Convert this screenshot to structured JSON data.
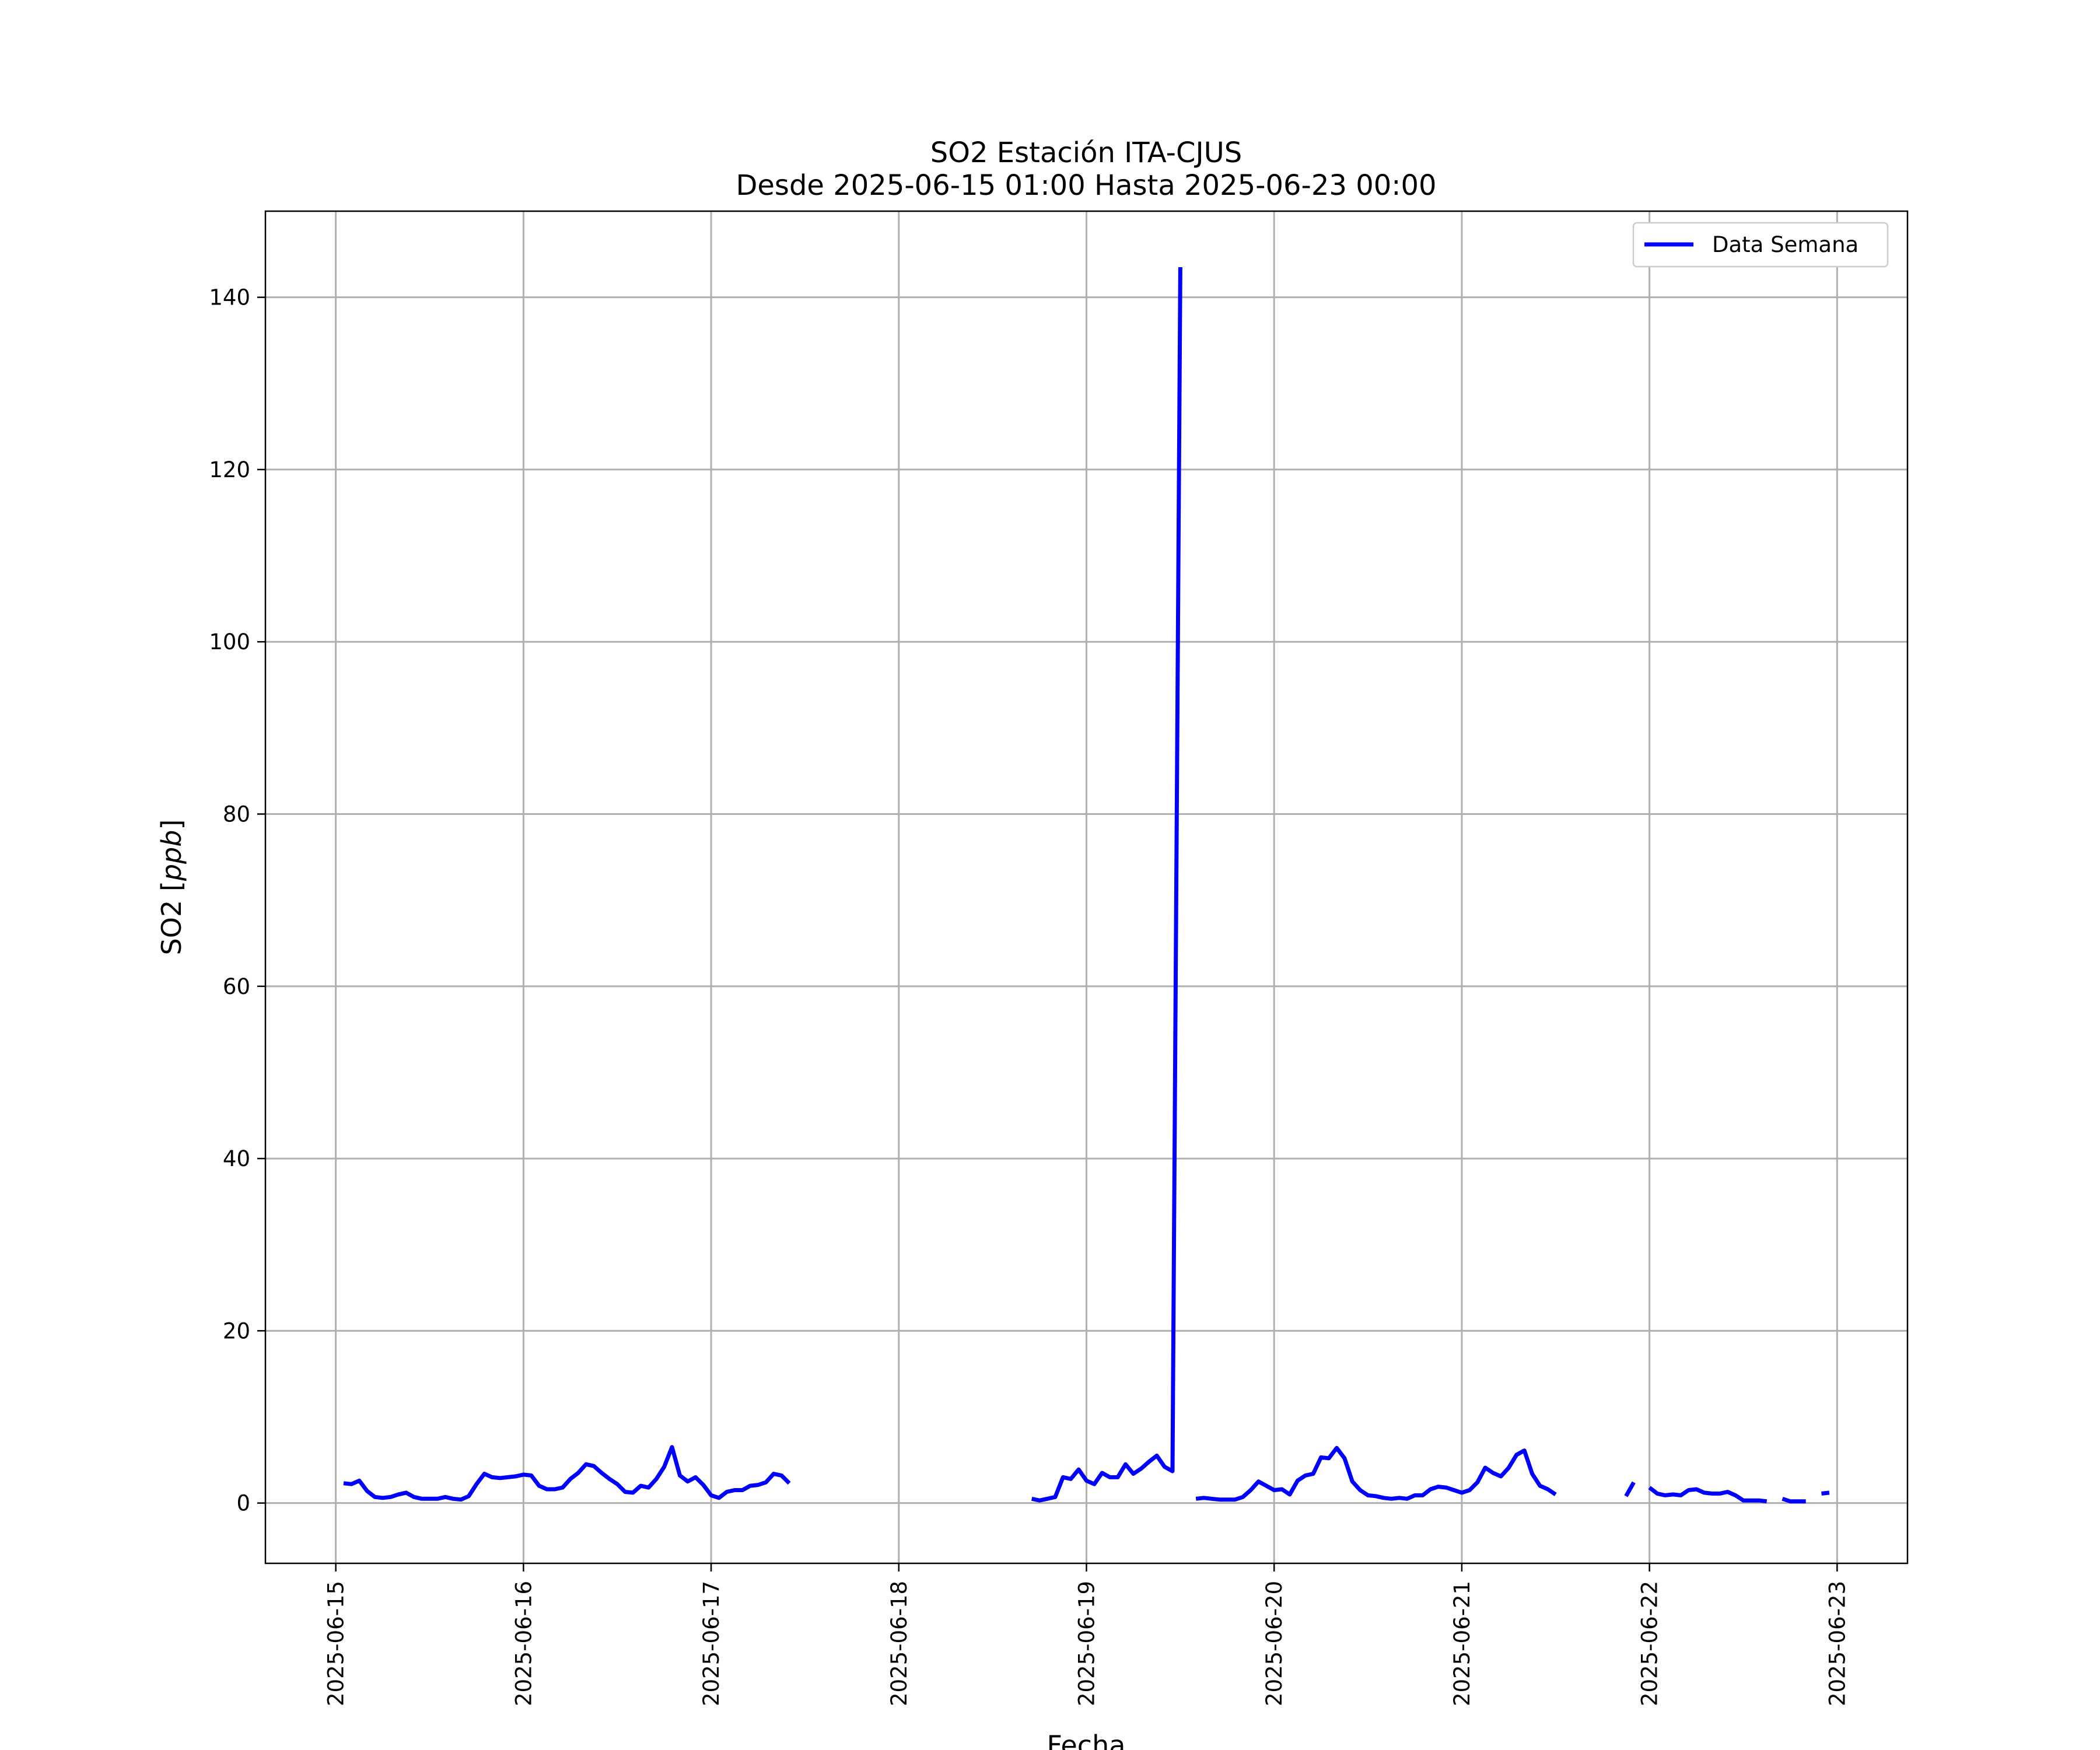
{
  "chart_data": {
    "type": "line",
    "title": "SO2 Estación ITA-CJUS",
    "subtitle": "Desde 2025-06-15 01:00 Hasta 2025-06-23 00:00",
    "xlabel": "Fecha",
    "ylabel": "SO2 [ppb]",
    "ylabel_plain": "SO2 [",
    "ylabel_italic": "ppb",
    "ylabel_close": "]",
    "xlim": [
      "2025-06-14 15:00",
      "2025-06-23 09:00"
    ],
    "ylim": [
      -7,
      150
    ],
    "x_ticks": [
      "2025-06-15",
      "2025-06-16",
      "2025-06-17",
      "2025-06-18",
      "2025-06-19",
      "2025-06-20",
      "2025-06-21",
      "2025-06-22",
      "2025-06-23"
    ],
    "y_ticks": [
      0,
      20,
      40,
      60,
      80,
      100,
      120,
      140
    ],
    "grid": true,
    "legend_position": "top-right",
    "line_color": "#0000ff",
    "series": [
      {
        "name": "Data Semana",
        "segments": [
          [
            [
              "2025-06-15 01:00",
              2.3
            ],
            [
              "2025-06-15 02:00",
              2.2
            ],
            [
              "2025-06-15 03:00",
              2.6
            ],
            [
              "2025-06-15 04:00",
              1.4
            ],
            [
              "2025-06-15 05:00",
              0.7
            ],
            [
              "2025-06-15 06:00",
              0.6
            ],
            [
              "2025-06-15 07:00",
              0.7
            ],
            [
              "2025-06-15 08:00",
              1.0
            ],
            [
              "2025-06-15 09:00",
              1.2
            ],
            [
              "2025-06-15 10:00",
              0.7
            ],
            [
              "2025-06-15 11:00",
              0.5
            ],
            [
              "2025-06-15 12:00",
              0.5
            ],
            [
              "2025-06-15 13:00",
              0.5
            ],
            [
              "2025-06-15 14:00",
              0.7
            ],
            [
              "2025-06-15 15:00",
              0.5
            ],
            [
              "2025-06-15 16:00",
              0.4
            ],
            [
              "2025-06-15 17:00",
              0.8
            ],
            [
              "2025-06-15 18:00",
              2.2
            ],
            [
              "2025-06-15 19:00",
              3.4
            ],
            [
              "2025-06-15 20:00",
              3.0
            ],
            [
              "2025-06-15 21:00",
              2.9
            ],
            [
              "2025-06-15 22:00",
              3.0
            ],
            [
              "2025-06-15 23:00",
              3.1
            ],
            [
              "2025-06-16 00:00",
              3.3
            ],
            [
              "2025-06-16 01:00",
              3.2
            ],
            [
              "2025-06-16 02:00",
              2.0
            ],
            [
              "2025-06-16 03:00",
              1.6
            ],
            [
              "2025-06-16 04:00",
              1.6
            ],
            [
              "2025-06-16 05:00",
              1.8
            ],
            [
              "2025-06-16 06:00",
              2.8
            ],
            [
              "2025-06-16 07:00",
              3.5
            ],
            [
              "2025-06-16 08:00",
              4.5
            ],
            [
              "2025-06-16 09:00",
              4.3
            ],
            [
              "2025-06-16 10:00",
              3.5
            ],
            [
              "2025-06-16 11:00",
              2.8
            ],
            [
              "2025-06-16 12:00",
              2.2
            ],
            [
              "2025-06-16 13:00",
              1.3
            ],
            [
              "2025-06-16 14:00",
              1.2
            ],
            [
              "2025-06-16 15:00",
              2.0
            ],
            [
              "2025-06-16 16:00",
              1.8
            ],
            [
              "2025-06-16 17:00",
              2.8
            ],
            [
              "2025-06-16 18:00",
              4.2
            ],
            [
              "2025-06-16 19:00",
              6.5
            ],
            [
              "2025-06-16 20:00",
              3.2
            ],
            [
              "2025-06-16 21:00",
              2.5
            ],
            [
              "2025-06-16 22:00",
              3.0
            ],
            [
              "2025-06-16 23:00",
              2.1
            ],
            [
              "2025-06-17 00:00",
              0.9
            ],
            [
              "2025-06-17 01:00",
              0.6
            ],
            [
              "2025-06-17 02:00",
              1.3
            ],
            [
              "2025-06-17 03:00",
              1.5
            ],
            [
              "2025-06-17 04:00",
              1.5
            ],
            [
              "2025-06-17 05:00",
              2.0
            ],
            [
              "2025-06-17 06:00",
              2.1
            ],
            [
              "2025-06-17 07:00",
              2.4
            ],
            [
              "2025-06-17 08:00",
              3.4
            ],
            [
              "2025-06-17 09:00",
              3.2
            ],
            [
              "2025-06-17 10:00",
              2.3
            ]
          ],
          [
            [
              "2025-06-18 17:00",
              0.5
            ],
            [
              "2025-06-18 18:00",
              0.3
            ],
            [
              "2025-06-18 19:00",
              0.5
            ],
            [
              "2025-06-18 20:00",
              0.7
            ],
            [
              "2025-06-18 21:00",
              3.0
            ],
            [
              "2025-06-18 22:00",
              2.8
            ],
            [
              "2025-06-18 23:00",
              3.9
            ],
            [
              "2025-06-19 00:00",
              2.6
            ],
            [
              "2025-06-19 01:00",
              2.2
            ],
            [
              "2025-06-19 02:00",
              3.5
            ],
            [
              "2025-06-19 03:00",
              3.0
            ],
            [
              "2025-06-19 04:00",
              3.0
            ],
            [
              "2025-06-19 05:00",
              4.5
            ],
            [
              "2025-06-19 06:00",
              3.4
            ],
            [
              "2025-06-19 07:00",
              4.0
            ],
            [
              "2025-06-19 08:00",
              4.8
            ],
            [
              "2025-06-19 09:00",
              5.5
            ],
            [
              "2025-06-19 10:00",
              4.2
            ],
            [
              "2025-06-19 11:00",
              3.7
            ],
            [
              "2025-06-19 12:00",
              143.5
            ]
          ],
          [
            [
              "2025-06-19 14:00",
              0.5
            ],
            [
              "2025-06-19 15:00",
              0.6
            ],
            [
              "2025-06-19 16:00",
              0.5
            ],
            [
              "2025-06-19 17:00",
              0.4
            ],
            [
              "2025-06-19 18:00",
              0.4
            ],
            [
              "2025-06-19 19:00",
              0.4
            ],
            [
              "2025-06-19 20:00",
              0.7
            ],
            [
              "2025-06-19 21:00",
              1.5
            ],
            [
              "2025-06-19 22:00",
              2.5
            ],
            [
              "2025-06-19 23:00",
              2.0
            ],
            [
              "2025-06-20 00:00",
              1.5
            ],
            [
              "2025-06-20 01:00",
              1.6
            ],
            [
              "2025-06-20 02:00",
              1.0
            ],
            [
              "2025-06-20 03:00",
              2.6
            ],
            [
              "2025-06-20 04:00",
              3.2
            ],
            [
              "2025-06-20 05:00",
              3.4
            ],
            [
              "2025-06-20 06:00",
              5.3
            ],
            [
              "2025-06-20 07:00",
              5.2
            ],
            [
              "2025-06-20 08:00",
              6.4
            ],
            [
              "2025-06-20 09:00",
              5.2
            ],
            [
              "2025-06-20 10:00",
              2.5
            ],
            [
              "2025-06-20 11:00",
              1.5
            ],
            [
              "2025-06-20 12:00",
              0.9
            ],
            [
              "2025-06-20 13:00",
              0.8
            ],
            [
              "2025-06-20 14:00",
              0.6
            ],
            [
              "2025-06-20 15:00",
              0.5
            ],
            [
              "2025-06-20 16:00",
              0.6
            ],
            [
              "2025-06-20 17:00",
              0.5
            ],
            [
              "2025-06-20 18:00",
              0.9
            ],
            [
              "2025-06-20 19:00",
              0.9
            ],
            [
              "2025-06-20 20:00",
              1.6
            ],
            [
              "2025-06-20 21:00",
              1.9
            ],
            [
              "2025-06-20 22:00",
              1.8
            ],
            [
              "2025-06-20 23:00",
              1.5
            ],
            [
              "2025-06-21 00:00",
              1.2
            ],
            [
              "2025-06-21 01:00",
              1.5
            ],
            [
              "2025-06-21 02:00",
              2.4
            ],
            [
              "2025-06-21 03:00",
              4.1
            ],
            [
              "2025-06-21 04:00",
              3.5
            ],
            [
              "2025-06-21 05:00",
              3.1
            ],
            [
              "2025-06-21 06:00",
              4.1
            ],
            [
              "2025-06-21 07:00",
              5.6
            ],
            [
              "2025-06-21 08:00",
              6.1
            ],
            [
              "2025-06-21 09:00",
              3.4
            ],
            [
              "2025-06-21 10:00",
              2.0
            ],
            [
              "2025-06-21 11:00",
              1.6
            ],
            [
              "2025-06-21 12:00",
              1.0
            ]
          ],
          [
            [
              "2025-06-21 21:00",
              0.8
            ],
            [
              "2025-06-21 22:00",
              2.4
            ]
          ],
          [
            [
              "2025-06-22 00:00",
              1.8
            ],
            [
              "2025-06-22 01:00",
              1.1
            ],
            [
              "2025-06-22 02:00",
              0.9
            ],
            [
              "2025-06-22 03:00",
              1.0
            ],
            [
              "2025-06-22 04:00",
              0.9
            ],
            [
              "2025-06-22 05:00",
              1.5
            ],
            [
              "2025-06-22 06:00",
              1.6
            ],
            [
              "2025-06-22 07:00",
              1.2
            ],
            [
              "2025-06-22 08:00",
              1.1
            ],
            [
              "2025-06-22 09:00",
              1.1
            ],
            [
              "2025-06-22 10:00",
              1.3
            ],
            [
              "2025-06-22 11:00",
              0.9
            ],
            [
              "2025-06-22 12:00",
              0.3
            ],
            [
              "2025-06-22 13:00",
              0.3
            ],
            [
              "2025-06-22 14:00",
              0.3
            ],
            [
              "2025-06-22 15:00",
              0.2
            ]
          ],
          [
            [
              "2025-06-22 17:00",
              0.5
            ],
            [
              "2025-06-22 18:00",
              0.2
            ],
            [
              "2025-06-22 19:00",
              0.2
            ],
            [
              "2025-06-22 20:00",
              0.2
            ]
          ],
          [
            [
              "2025-06-22 22:00",
              1.1
            ],
            [
              "2025-06-22 23:00",
              1.2
            ]
          ]
        ]
      }
    ]
  }
}
